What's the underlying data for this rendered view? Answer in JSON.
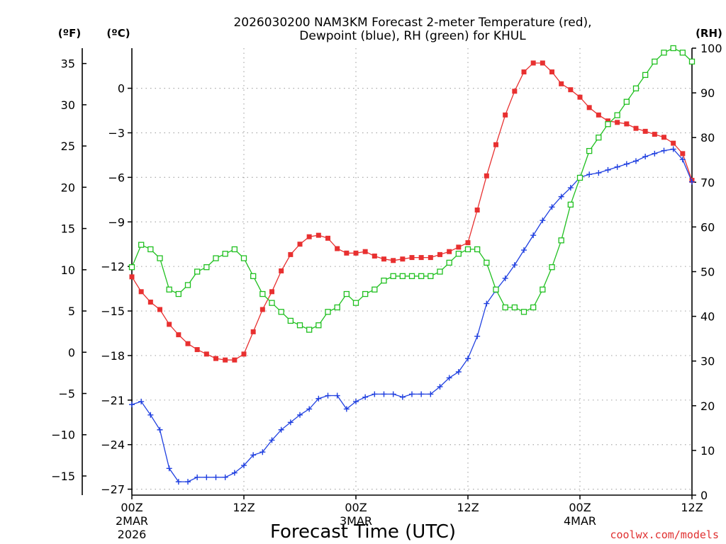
{
  "chart_data": {
    "type": "line",
    "title_line1": "2026030200 NAM3KM Forecast 2-meter Temperature (red),",
    "title_line2": "Dewpoint (blue), RH (green) for KHUL",
    "xlabel": "Forecast Time (UTC)",
    "unit_f": "(ºF)",
    "unit_c": "(ºC)",
    "unit_rh": "(RH)",
    "watermark": "coolwx.com/models",
    "x_range_hours": [
      0,
      60
    ],
    "x_ticks": [
      {
        "hour": 0,
        "label": "00Z",
        "sub1": "2MAR",
        "sub2": "2026"
      },
      {
        "hour": 12,
        "label": "12Z",
        "sub1": "",
        "sub2": ""
      },
      {
        "hour": 24,
        "label": "00Z",
        "sub1": "3MAR",
        "sub2": ""
      },
      {
        "hour": 36,
        "label": "12Z",
        "sub1": "",
        "sub2": ""
      },
      {
        "hour": 48,
        "label": "00Z",
        "sub1": "4MAR",
        "sub2": ""
      },
      {
        "hour": 60,
        "label": "12Z",
        "sub1": "",
        "sub2": ""
      }
    ],
    "c_range": [
      -27.4,
      2.7
    ],
    "c_ticks": [
      "0",
      "−3",
      "−6",
      "−9",
      "−12",
      "−15",
      "−18",
      "−21",
      "−24",
      "−27"
    ],
    "f_ticks": [
      "35",
      "30",
      "25",
      "20",
      "15",
      "10",
      "5",
      "0",
      "−5",
      "−10",
      "−15"
    ],
    "rh_range": [
      0,
      100
    ],
    "rh_ticks": [
      "100",
      "90",
      "80",
      "70",
      "60",
      "50",
      "40",
      "30",
      "20",
      "10",
      "0"
    ],
    "series": [
      {
        "name": "Temperature",
        "unit": "C",
        "color": "#e83030",
        "marker": "filled-square",
        "hours": [
          0,
          1,
          2,
          3,
          4,
          5,
          6,
          7,
          8,
          9,
          10,
          11,
          12,
          13,
          14,
          15,
          16,
          17,
          18,
          19,
          20,
          21,
          22,
          23,
          24,
          25,
          26,
          27,
          28,
          29,
          30,
          31,
          32,
          33,
          34,
          35,
          36,
          37,
          38,
          39,
          40,
          41,
          42,
          43,
          44,
          45,
          46,
          47,
          48,
          49,
          50,
          51,
          52,
          53,
          54,
          55,
          56,
          57,
          58,
          59,
          60
        ],
        "values": [
          -12.7,
          -13.7,
          -14.4,
          -14.9,
          -15.9,
          -16.6,
          -17.2,
          -17.6,
          -17.9,
          -18.2,
          -18.3,
          -18.3,
          -17.9,
          -16.4,
          -14.9,
          -13.7,
          -12.3,
          -11.2,
          -10.5,
          -10.0,
          -9.9,
          -10.1,
          -10.8,
          -11.1,
          -11.1,
          -11.0,
          -11.3,
          -11.5,
          -11.6,
          -11.5,
          -11.4,
          -11.4,
          -11.4,
          -11.2,
          -11.0,
          -10.7,
          -10.4,
          -8.2,
          -5.9,
          -3.8,
          -1.8,
          -0.2,
          1.1,
          1.7,
          1.7,
          1.1,
          0.3,
          -0.1,
          -0.6,
          -1.3,
          -1.8,
          -2.2,
          -2.3,
          -2.4,
          -2.7,
          -2.9,
          -3.1,
          -3.3,
          -3.7,
          -4.4,
          -6.2
        ]
      },
      {
        "name": "Dewpoint",
        "unit": "C",
        "color": "#2040e0",
        "marker": "plus",
        "hours": [
          0,
          1,
          2,
          3,
          4,
          5,
          6,
          7,
          8,
          9,
          10,
          11,
          12,
          13,
          14,
          15,
          16,
          17,
          18,
          19,
          20,
          21,
          22,
          23,
          24,
          25,
          26,
          27,
          28,
          29,
          30,
          31,
          32,
          33,
          34,
          35,
          36,
          37,
          38,
          39,
          40,
          41,
          42,
          43,
          44,
          45,
          46,
          47,
          48,
          49,
          50,
          51,
          52,
          53,
          54,
          55,
          56,
          57,
          58,
          59,
          60
        ],
        "values": [
          -21.3,
          -21.1,
          -22.0,
          -23.0,
          -25.6,
          -26.5,
          -26.5,
          -26.2,
          -26.2,
          -26.2,
          -26.2,
          -25.9,
          -25.4,
          -24.7,
          -24.5,
          -23.7,
          -23.0,
          -22.5,
          -22.0,
          -21.6,
          -20.9,
          -20.7,
          -20.7,
          -21.6,
          -21.1,
          -20.8,
          -20.6,
          -20.6,
          -20.6,
          -20.8,
          -20.6,
          -20.6,
          -20.6,
          -20.1,
          -19.5,
          -19.1,
          -18.2,
          -16.7,
          -14.5,
          -13.6,
          -12.8,
          -11.9,
          -10.9,
          -9.9,
          -8.9,
          -8.0,
          -7.3,
          -6.7,
          -6.0,
          -5.8,
          -5.7,
          -5.5,
          -5.3,
          -5.1,
          -4.9,
          -4.6,
          -4.4,
          -4.2,
          -4.1,
          -4.8,
          -6.3
        ]
      },
      {
        "name": "RH",
        "unit": "%",
        "color": "#20c020",
        "marker": "open-square",
        "hours": [
          0,
          1,
          2,
          3,
          4,
          5,
          6,
          7,
          8,
          9,
          10,
          11,
          12,
          13,
          14,
          15,
          16,
          17,
          18,
          19,
          20,
          21,
          22,
          23,
          24,
          25,
          26,
          27,
          28,
          29,
          30,
          31,
          32,
          33,
          34,
          35,
          36,
          37,
          38,
          39,
          40,
          41,
          42,
          43,
          44,
          45,
          46,
          47,
          48,
          49,
          50,
          51,
          52,
          53,
          54,
          55,
          56,
          57,
          58,
          59,
          60
        ],
        "values": [
          51,
          56,
          55,
          53,
          46,
          45,
          47,
          50,
          51,
          53,
          54,
          55,
          53,
          49,
          45,
          43,
          41,
          39,
          38,
          37,
          38,
          41,
          42,
          45,
          43,
          45,
          46,
          48,
          49,
          49,
          49,
          49,
          49,
          50,
          52,
          54,
          55,
          55,
          52,
          46,
          42,
          42,
          41,
          42,
          46,
          51,
          57,
          65,
          71,
          77,
          80,
          83,
          85,
          88,
          91,
          94,
          97,
          99,
          100,
          99,
          97
        ]
      }
    ]
  }
}
